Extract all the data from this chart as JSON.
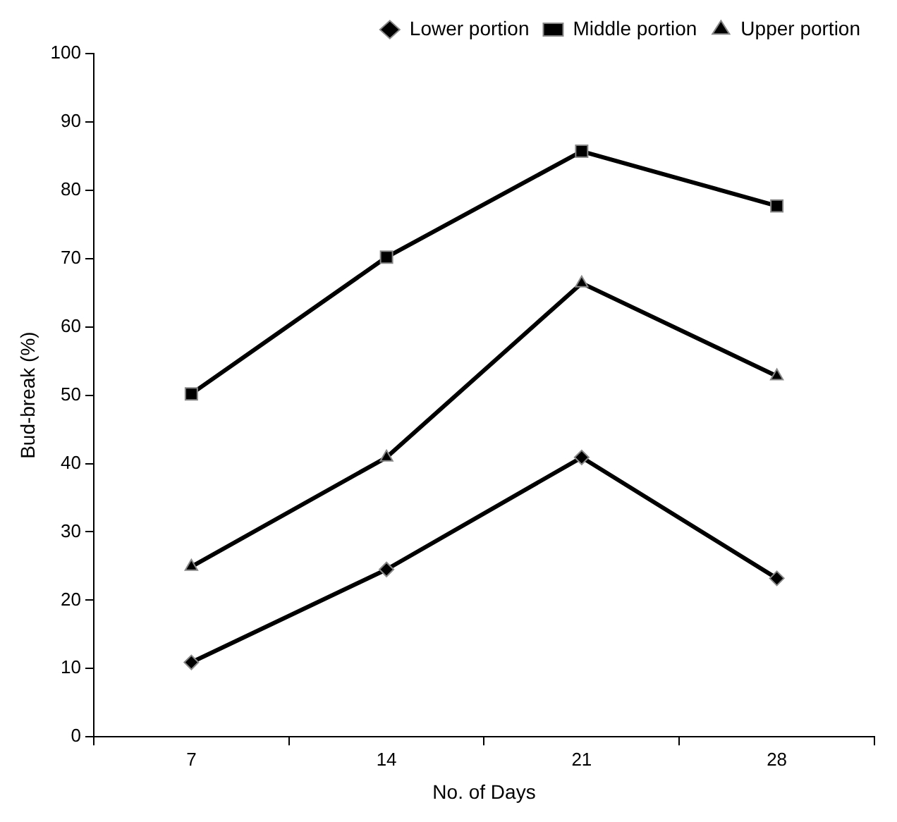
{
  "chart_data": {
    "type": "line",
    "xlabel": "No. of Days",
    "ylabel": "Bud-break (%)",
    "categories": [
      "7",
      "14",
      "21",
      "28"
    ],
    "series": [
      {
        "name": "Lower portion",
        "color": "#000000",
        "marker": "diamond",
        "values": [
          10.9,
          24.5,
          40.9,
          23.2
        ]
      },
      {
        "name": "Middle portion",
        "color": "#000000",
        "marker": "square",
        "values": [
          50.2,
          70.2,
          85.7,
          77.7
        ]
      },
      {
        "name": "Upper portion",
        "color": "#000000",
        "marker": "triangle",
        "values": [
          24.9,
          40.9,
          66.4,
          52.8
        ]
      }
    ],
    "ylim": [
      0,
      100
    ],
    "yticks": [
      0,
      10,
      20,
      30,
      40,
      50,
      60,
      70,
      80,
      90,
      100
    ],
    "grid": false,
    "legend": "top right",
    "line_style": "solid"
  }
}
